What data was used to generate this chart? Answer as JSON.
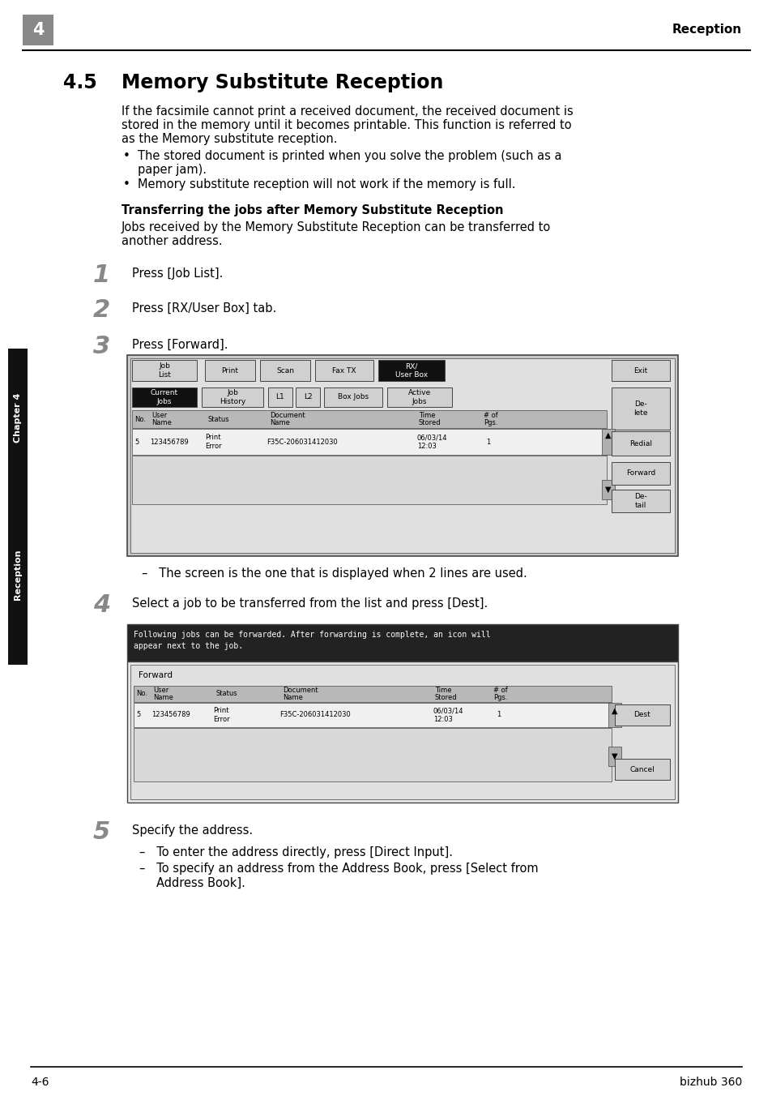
{
  "page_bg": "#ffffff",
  "header_num": "4",
  "header_num_bg": "#888888",
  "header_text": "Reception",
  "footer_left": "4-6",
  "footer_right": "bizhub 360",
  "section_num": "4.5",
  "section_title": "Memory Substitute Reception",
  "body1_line1": "If the facsimile cannot print a received document, the received document is",
  "body1_line2": "stored in the memory until it becomes printable. This function is referred to",
  "body1_line3": "as the Memory substitute reception.",
  "bullet1_line1": "The stored document is printed when you solve the problem (such as a",
  "bullet1_line2": "paper jam).",
  "bullet2": "Memory substitute reception will not work if the memory is full.",
  "subsec_title": "Transferring the jobs after Memory Substitute Reception",
  "subbody1": "Jobs received by the Memory Substitute Reception can be transferred to",
  "subbody2": "another address.",
  "step1_text": "Press [Job List].",
  "step2_text": "Press [RX/User Box] tab.",
  "step3_text": "Press [Forward].",
  "screen_note": "The screen is the one that is displayed when 2 lines are used.",
  "step4_text": "Select a job to be transferred from the list and press [Dest].",
  "fwd_note1": "Following jobs can be forwarded. After forwarding is complete, an icon will",
  "fwd_note2": "appear next to the job.",
  "step5_text": "Specify the address.",
  "sub1": "To enter the address directly, press [Direct Input].",
  "sub2_a": "To specify an address from the Address Book, press [Select from",
  "sub2_b": "Address Book].",
  "sidebar_ch": "Chapter 4",
  "sidebar_rc": "Reception",
  "screen1_data_row": "5  123456789  Print Error  F35C-206031412030  06/03/14 12:03  1",
  "screen2_data_row": "5  123456789  Print Error  F35C-206031412030  06/03/14 12:03  1"
}
